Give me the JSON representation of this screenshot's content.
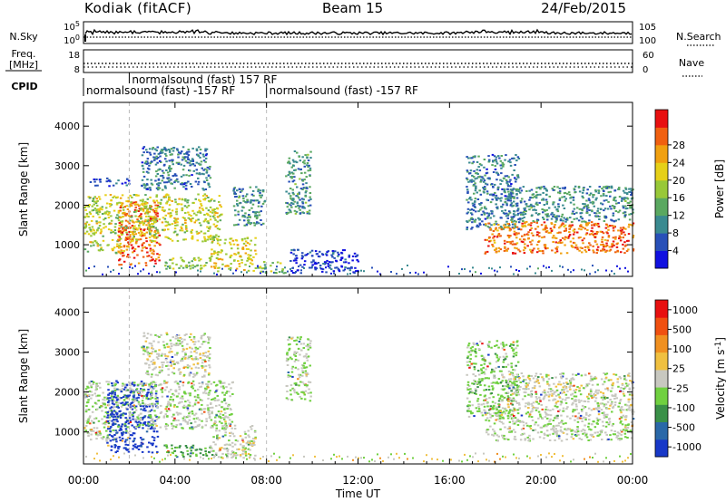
{
  "header": {
    "station": "Kodiak (fitACF)",
    "beam": "Beam 15",
    "date": "24/Feb/2015"
  },
  "noise_panel": {
    "left_label": "N.Sky",
    "right_label": "N.Search",
    "left_ticks": [
      "10^5",
      "10^0"
    ],
    "right_ticks": [
      "10^5",
      "10^0"
    ]
  },
  "freq_panel": {
    "left_label_line1": "Freq.",
    "left_label_line2": "[MHz]",
    "right_label": "Nave",
    "left_ticks": [
      "18",
      "8"
    ],
    "right_ticks": [
      "60",
      "0"
    ]
  },
  "cpid": {
    "label": "CPID",
    "segments": [
      {
        "text": "normalsound (fast) -157 RF",
        "start_hour": 0.0
      },
      {
        "text": "normalsound (fast) 157 RF",
        "start_hour": 2.0
      },
      {
        "text": "normalsound (fast) -157 RF",
        "start_hour": 8.0
      }
    ]
  },
  "chart_data": [
    {
      "type": "heatmap",
      "panel": "power",
      "ylabel": "Slant Range [km]",
      "xlabel": "Time UT",
      "x_ticks": [
        "00:00",
        "04:00",
        "08:00",
        "12:00",
        "16:00",
        "20:00",
        "00:00"
      ],
      "xlim_hours": [
        0,
        24
      ],
      "ylim": [
        200,
        4600
      ],
      "y_ticks": [
        1000,
        2000,
        3000,
        4000
      ],
      "colorbar_label": "Power [dB]",
      "colorbar_ticks": [
        "4",
        "8",
        "12",
        "16",
        "20",
        "24",
        "28"
      ],
      "colorbar_colors": [
        "#1010e0",
        "#2850b8",
        "#3a8a90",
        "#5aa860",
        "#98c838",
        "#e6d018",
        "#f0a010",
        "#f06010",
        "#e81010"
      ],
      "regions": [
        {
          "t0": 0.0,
          "t1": 2.0,
          "r0": 800,
          "r1": 2300,
          "level": 0.55
        },
        {
          "t0": 0.2,
          "t1": 2.0,
          "r0": 2500,
          "r1": 2700,
          "level": 0.15
        },
        {
          "t0": 1.5,
          "t1": 3.3,
          "r0": 500,
          "r1": 2100,
          "level": 0.85
        },
        {
          "t0": 2.0,
          "t1": 6.0,
          "r0": 1100,
          "r1": 2300,
          "level": 0.55
        },
        {
          "t0": 2.5,
          "t1": 5.5,
          "r0": 2400,
          "r1": 3500,
          "level": 0.25
        },
        {
          "t0": 3.5,
          "t1": 5.5,
          "r0": 400,
          "r1": 700,
          "level": 0.5
        },
        {
          "t0": 5.5,
          "t1": 7.5,
          "r0": 350,
          "r1": 1200,
          "level": 0.6
        },
        {
          "t0": 6.5,
          "t1": 7.9,
          "r0": 1500,
          "r1": 2500,
          "level": 0.3
        },
        {
          "t0": 7.5,
          "t1": 8.9,
          "r0": 300,
          "r1": 600,
          "level": 0.45
        },
        {
          "t0": 8.8,
          "t1": 9.9,
          "r0": 1800,
          "r1": 3400,
          "level": 0.3
        },
        {
          "t0": 9.0,
          "t1": 12.0,
          "r0": 300,
          "r1": 900,
          "level": 0.1
        },
        {
          "t0": 16.7,
          "t1": 19.0,
          "r0": 1400,
          "r1": 3300,
          "level": 0.25
        },
        {
          "t0": 17.5,
          "t1": 24.0,
          "r0": 800,
          "r1": 1600,
          "level": 0.8
        },
        {
          "t0": 18.5,
          "t1": 24.0,
          "r0": 1600,
          "r1": 2500,
          "level": 0.3
        }
      ]
    },
    {
      "type": "heatmap",
      "panel": "velocity",
      "ylabel": "Slant Range [km]",
      "xlabel": "Time UT",
      "x_ticks": [
        "00:00",
        "04:00",
        "08:00",
        "12:00",
        "16:00",
        "20:00",
        "00:00"
      ],
      "xlim_hours": [
        0,
        24
      ],
      "ylim": [
        200,
        4600
      ],
      "y_ticks": [
        1000,
        2000,
        3000,
        4000
      ],
      "colorbar_label": "Velocity [m s^-1]",
      "colorbar_ticks": [
        "1000",
        "500",
        "100",
        "25",
        "-25",
        "-100",
        "-500",
        "-1000"
      ],
      "colorbar_colors": [
        "#1838c8",
        "#2a68a8",
        "#3a9048",
        "#70d040",
        "#c8c8c0",
        "#f0c040",
        "#f09020",
        "#f05010",
        "#e81010"
      ],
      "regions": [
        {
          "t0": 0.0,
          "t1": 2.0,
          "r0": 800,
          "r1": 2300,
          "level": 0.45
        },
        {
          "t0": 1.0,
          "t1": 3.2,
          "r0": 500,
          "r1": 2300,
          "level": 0.05
        },
        {
          "t0": 2.0,
          "t1": 6.5,
          "r0": 1100,
          "r1": 2300,
          "level": 0.45
        },
        {
          "t0": 2.5,
          "t1": 5.5,
          "r0": 2400,
          "r1": 3500,
          "level": 0.5
        },
        {
          "t0": 3.5,
          "t1": 5.5,
          "r0": 400,
          "r1": 700,
          "level": 0.3
        },
        {
          "t0": 5.5,
          "t1": 7.5,
          "r0": 350,
          "r1": 1200,
          "level": 0.5
        },
        {
          "t0": 8.8,
          "t1": 9.9,
          "r0": 1800,
          "r1": 3400,
          "level": 0.45
        },
        {
          "t0": 16.7,
          "t1": 19.0,
          "r0": 1400,
          "r1": 3300,
          "level": 0.4
        },
        {
          "t0": 17.5,
          "t1": 24.0,
          "r0": 800,
          "r1": 1600,
          "level": 0.47
        },
        {
          "t0": 18.5,
          "t1": 24.0,
          "r0": 1600,
          "r1": 2500,
          "level": 0.5
        }
      ]
    }
  ]
}
